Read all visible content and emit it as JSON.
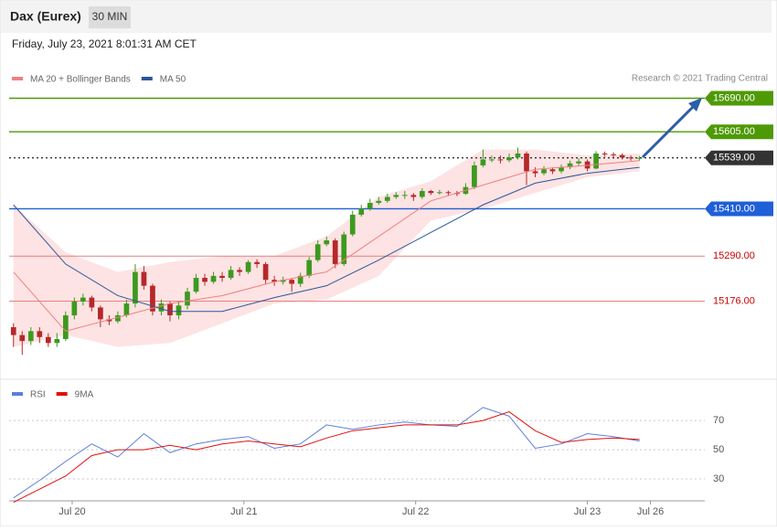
{
  "header": {
    "title": "Dax (Eurex)",
    "interval": "30 MIN",
    "datetime": "Friday, July 23, 2021 8:01:31 AM CET",
    "credit": "Research © 2021 Trading Central"
  },
  "chart_data": [
    {
      "type": "candlestick",
      "xlim": [
        -0.5,
        79.5
      ],
      "ylim": [
        14985,
        15800
      ],
      "up_color": "#3c9a1e",
      "down_color": "#b5282a",
      "open": [
        15110,
        15090,
        15075,
        15100,
        15085,
        15070,
        15080,
        15140,
        15175,
        15185,
        15160,
        15130,
        15125,
        15140,
        15170,
        15250,
        15215,
        15150,
        15170,
        15140,
        15165,
        15200,
        15235,
        15225,
        15240,
        15235,
        15255,
        15250,
        15275,
        15270,
        15230,
        15225,
        15230,
        15220,
        15240,
        15280,
        15320,
        15330,
        15270,
        15345,
        15395,
        15410,
        15425,
        15430,
        15440,
        15445,
        15445,
        15440,
        15455,
        15450,
        15452,
        15450,
        15448,
        15465,
        15520,
        15535,
        15535,
        15533,
        15540,
        15550,
        15505,
        15500,
        15510,
        15505,
        15515,
        15525,
        15530,
        15512,
        15550,
        15548,
        15546,
        15540,
        15538
      ],
      "high": [
        15120,
        15100,
        15110,
        15110,
        15095,
        15095,
        15150,
        15185,
        15195,
        15190,
        15165,
        15140,
        15150,
        15180,
        15270,
        15265,
        15220,
        15180,
        15175,
        15175,
        15210,
        15245,
        15245,
        15250,
        15250,
        15265,
        15262,
        15280,
        15282,
        15275,
        15240,
        15238,
        15235,
        15248,
        15288,
        15330,
        15340,
        15335,
        15352,
        15405,
        15420,
        15435,
        15440,
        15448,
        15452,
        15455,
        15450,
        15462,
        15458,
        15458,
        15456,
        15455,
        15475,
        15530,
        15560,
        15545,
        15545,
        15550,
        15565,
        15555,
        15515,
        15518,
        15515,
        15522,
        15532,
        15538,
        15535,
        15556,
        15555,
        15553,
        15550,
        15545,
        15544
      ],
      "low": [
        15060,
        15040,
        15065,
        15070,
        15060,
        15060,
        15075,
        15130,
        15165,
        15150,
        15110,
        15115,
        15120,
        15135,
        15160,
        15205,
        15140,
        15140,
        15125,
        15130,
        15155,
        15195,
        15215,
        15220,
        15225,
        15230,
        15240,
        15245,
        15260,
        15220,
        15215,
        15218,
        15200,
        15212,
        15235,
        15275,
        15315,
        15260,
        15265,
        15340,
        15390,
        15405,
        15420,
        15425,
        15435,
        15435,
        15430,
        15435,
        15445,
        15446,
        15444,
        15442,
        15445,
        15460,
        15515,
        15528,
        15525,
        15528,
        15535,
        15470,
        15490,
        15495,
        15498,
        15500,
        15510,
        15520,
        15505,
        15510,
        15542,
        15540,
        15535,
        15532,
        15532
      ],
      "close": [
        15090,
        15075,
        15100,
        15085,
        15070,
        15080,
        15140,
        15175,
        15185,
        15160,
        15130,
        15125,
        15140,
        15170,
        15250,
        15215,
        15150,
        15170,
        15140,
        15165,
        15200,
        15235,
        15225,
        15240,
        15235,
        15255,
        15250,
        15275,
        15270,
        15230,
        15225,
        15230,
        15220,
        15240,
        15280,
        15320,
        15330,
        15270,
        15345,
        15395,
        15410,
        15425,
        15430,
        15440,
        15445,
        15445,
        15440,
        15455,
        15450,
        15452,
        15450,
        15448,
        15465,
        15520,
        15535,
        15535,
        15533,
        15540,
        15550,
        15505,
        15500,
        15510,
        15505,
        15515,
        15525,
        15530,
        15512,
        15550,
        15548,
        15546,
        15540,
        15538,
        15539
      ],
      "bands": {
        "name": "MA 20 + Bollinger Bands",
        "color": "#f08080",
        "fill": "#fde3e3",
        "x": [
          0,
          6,
          12,
          18,
          24,
          30,
          36,
          42,
          48,
          54,
          60,
          66,
          72
        ],
        "upper": [
          15420,
          15300,
          15250,
          15275,
          15290,
          15290,
          15340,
          15440,
          15480,
          15560,
          15560,
          15545,
          15550
        ],
        "lower": [
          15060,
          15090,
          15060,
          15070,
          15120,
          15170,
          15180,
          15240,
          15380,
          15410,
          15450,
          15490,
          15505
        ]
      },
      "series": [
        {
          "name": "MA 20 + Bollinger Bands",
          "color": "#f08080",
          "x": [
            0,
            6,
            12,
            18,
            24,
            30,
            36,
            42,
            48,
            54,
            60,
            66,
            72
          ],
          "values": [
            15250,
            15100,
            15135,
            15170,
            15190,
            15225,
            15250,
            15340,
            15430,
            15470,
            15510,
            15520,
            15532
          ]
        },
        {
          "name": "MA 50",
          "color": "#2b5797",
          "x": [
            0,
            6,
            12,
            18,
            24,
            30,
            36,
            42,
            48,
            54,
            60,
            66,
            72
          ],
          "values": [
            15420,
            15270,
            15190,
            15150,
            15150,
            15185,
            15215,
            15280,
            15350,
            15420,
            15475,
            15500,
            15515
          ]
        }
      ],
      "levels": [
        {
          "value": 15690,
          "label": "15690.00",
          "color": "#4e9a06",
          "tag": true
        },
        {
          "value": 15605,
          "label": "15605.00",
          "color": "#4e9a06",
          "tag": true
        },
        {
          "value": 15539,
          "label": "15539.00",
          "color": "#333333",
          "tag": true
        },
        {
          "value": 15410,
          "label": "15410.00",
          "color": "#1f5fd8",
          "tag": true
        },
        {
          "value": 15290,
          "label": "15290.00",
          "color": "#e88080",
          "tag": false
        },
        {
          "value": 15176,
          "label": "15176.00",
          "color": "#e88080",
          "tag": false
        }
      ]
    },
    {
      "type": "line",
      "xlim": [
        -0.5,
        79.5
      ],
      "ylim": [
        15,
        92
      ],
      "yticks": [
        30,
        50,
        70
      ],
      "grid": true,
      "xticks": [
        {
          "value": 6.75,
          "label": "Jul 20"
        },
        {
          "value": 26.5,
          "label": "Jul 21"
        },
        {
          "value": 46.25,
          "label": "Jul 22"
        },
        {
          "value": 66,
          "label": "Jul 23"
        },
        {
          "value": 73.25,
          "label": "Jul 26"
        }
      ],
      "series": [
        {
          "name": "RSI",
          "color": "#5b7fdb",
          "x": [
            0,
            3,
            6,
            9,
            12,
            15,
            18,
            21,
            24,
            27,
            30,
            33,
            36,
            39,
            42,
            45,
            48,
            51,
            54,
            57,
            60,
            63,
            66,
            69,
            72
          ],
          "values": [
            17,
            29,
            42,
            54,
            45,
            61,
            48,
            54,
            57,
            59,
            51,
            54,
            67,
            64,
            67,
            69,
            67,
            66,
            79,
            73,
            51,
            54,
            61,
            59,
            56
          ]
        },
        {
          "name": "9MA",
          "color": "#e01010",
          "x": [
            0,
            3,
            6,
            9,
            12,
            15,
            18,
            21,
            24,
            27,
            30,
            33,
            36,
            39,
            42,
            45,
            48,
            51,
            54,
            57,
            60,
            63,
            66,
            69,
            72
          ],
          "values": [
            14,
            23,
            32,
            46,
            50,
            50,
            53,
            50,
            54,
            56,
            54,
            52,
            58,
            63,
            65,
            67,
            67,
            67,
            70,
            76,
            63,
            55,
            57,
            58,
            57
          ]
        }
      ]
    }
  ]
}
